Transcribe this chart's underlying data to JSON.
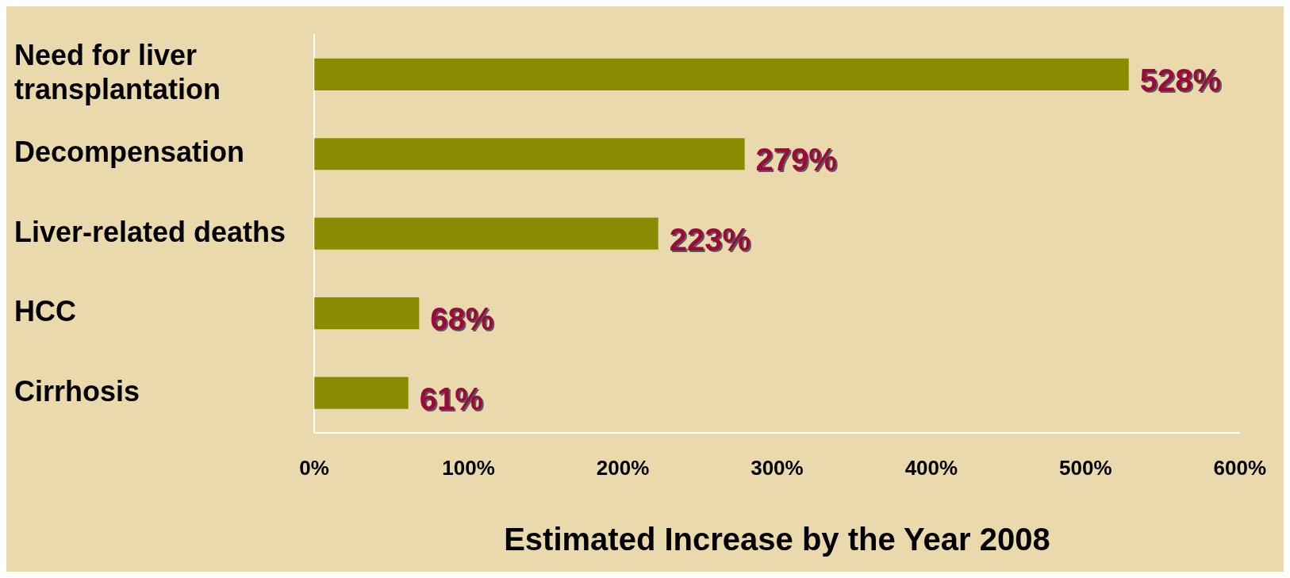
{
  "chart_data": {
    "type": "bar",
    "orientation": "horizontal",
    "xlabel": "Estimated Increase by the Year 2008",
    "categories": [
      "Need for liver transplantation",
      "Decompensation",
      "Liver-related deaths",
      "HCC",
      "Cirrhosis"
    ],
    "values": [
      528,
      279,
      223,
      68,
      61
    ],
    "value_labels": [
      "528%",
      "279%",
      "223%",
      "68%",
      "61%"
    ],
    "color": "#8b8b00",
    "xlim": [
      0,
      600
    ],
    "xticks": [
      {
        "value": 0,
        "label": "0%"
      },
      {
        "value": 100,
        "label": "100%"
      },
      {
        "value": 200,
        "label": "200%"
      },
      {
        "value": 300,
        "label": "300%"
      },
      {
        "value": 400,
        "label": "400%"
      },
      {
        "value": 500,
        "label": "500%"
      },
      {
        "value": 600,
        "label": "600%"
      }
    ],
    "grid": false,
    "legend": false
  }
}
